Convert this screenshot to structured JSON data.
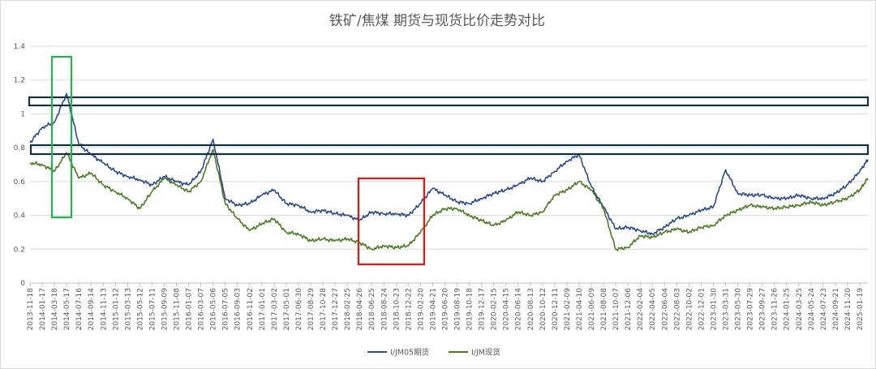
{
  "chart_data": {
    "type": "line",
    "title": "铁矿/焦煤 期货与现货比价走势对比",
    "xlabel": "",
    "ylabel": "",
    "ylim": [
      0,
      1.4
    ],
    "yticks": [
      "0",
      "0.2",
      "0.4",
      "0.6",
      "0.8",
      "1",
      "1.2",
      "1.4"
    ],
    "grid": "horizontal",
    "legend_position": "bottom",
    "colors": {
      "I/JM05期货": "#2e4a87",
      "I/JM现货": "#4f7a28"
    },
    "x_tick_labels": [
      "2013-11-18",
      "2014-01-17",
      "2014-03-18",
      "2014-05-17",
      "2014-07-16",
      "2014-09-14",
      "2014-11-13",
      "2015-01-12",
      "2015-03-13",
      "2015-05-12",
      "2015-07-11",
      "2015-09-09",
      "2015-11-08",
      "2016-01-07",
      "2016-03-07",
      "2016-05-06",
      "2016-07-05",
      "2016-09-03",
      "2016-11-02",
      "2017-01-01",
      "2017-03-02",
      "2017-05-01",
      "2017-06-30",
      "2017-08-29",
      "2017-10-28",
      "2017-12-27",
      "2018-02-25",
      "2018-04-26",
      "2018-06-25",
      "2018-08-24",
      "2018-10-23",
      "2018-12-22",
      "2019-02-20",
      "2019-04-21",
      "2019-06-20",
      "2019-08-19",
      "2019-10-18",
      "2019-12-17",
      "2020-02-15",
      "2020-04-15",
      "2020-06-14",
      "2020-08-13",
      "2020-10-12",
      "2020-12-11",
      "2021-02-09",
      "2021-04-10",
      "2021-06-09",
      "2021-08-08",
      "2021-10-07",
      "2021-12-06",
      "2022-02-04",
      "2022-04-05",
      "2022-06-04",
      "2022-08-03",
      "2022-10-02",
      "2022-12-01",
      "2023-01-30",
      "2023-03-31",
      "2023-05-30",
      "2023-07-29",
      "2023-09-27",
      "2023-11-26",
      "2024-01-25",
      "2024-03-25",
      "2024-05-24",
      "2024-07-23",
      "2024-09-21",
      "2024-11-20",
      "2025-01-19"
    ],
    "x": [
      "2013-11-18",
      "2014-01-17",
      "2014-03-18",
      "2014-05-17",
      "2014-07-16",
      "2014-09-14",
      "2014-11-13",
      "2015-01-12",
      "2015-03-13",
      "2015-05-12",
      "2015-07-11",
      "2015-09-09",
      "2015-11-08",
      "2016-01-07",
      "2016-03-07",
      "2016-05-06",
      "2016-07-05",
      "2016-09-03",
      "2016-11-02",
      "2017-01-01",
      "2017-03-02",
      "2017-05-01",
      "2017-06-30",
      "2017-08-29",
      "2017-10-28",
      "2017-12-27",
      "2018-02-25",
      "2018-04-26",
      "2018-06-25",
      "2018-08-24",
      "2018-10-23",
      "2018-12-22",
      "2019-02-20",
      "2019-04-21",
      "2019-06-20",
      "2019-08-19",
      "2019-10-18",
      "2019-12-17",
      "2020-02-15",
      "2020-04-15",
      "2020-06-14",
      "2020-08-13",
      "2020-10-12",
      "2020-12-11",
      "2021-02-09",
      "2021-04-10",
      "2021-06-09",
      "2021-08-08",
      "2021-10-07",
      "2021-12-06",
      "2022-02-04",
      "2022-04-05",
      "2022-06-04",
      "2022-08-03",
      "2022-10-02",
      "2022-12-01",
      "2023-01-30",
      "2023-03-31",
      "2023-05-30",
      "2023-07-29",
      "2023-09-27",
      "2023-11-26",
      "2024-01-25",
      "2024-03-25",
      "2024-05-24",
      "2024-07-23",
      "2024-09-21",
      "2024-11-20",
      "2025-01-19",
      "2025-02-28"
    ],
    "series": [
      {
        "name": "I/JM05期货",
        "values": [
          0.83,
          0.92,
          0.95,
          1.12,
          0.82,
          0.76,
          0.71,
          0.66,
          0.63,
          0.61,
          0.58,
          0.63,
          0.6,
          0.58,
          0.66,
          0.85,
          0.5,
          0.46,
          0.47,
          0.52,
          0.55,
          0.47,
          0.46,
          0.42,
          0.43,
          0.41,
          0.4,
          0.37,
          0.42,
          0.41,
          0.41,
          0.4,
          0.47,
          0.56,
          0.52,
          0.48,
          0.47,
          0.5,
          0.53,
          0.55,
          0.58,
          0.62,
          0.6,
          0.66,
          0.72,
          0.76,
          0.57,
          0.45,
          0.32,
          0.33,
          0.31,
          0.29,
          0.33,
          0.38,
          0.4,
          0.43,
          0.45,
          0.67,
          0.53,
          0.52,
          0.52,
          0.5,
          0.5,
          0.52,
          0.5,
          0.5,
          0.53,
          0.58,
          0.66,
          0.73
        ]
      },
      {
        "name": "I/JM现货",
        "values": [
          0.71,
          0.7,
          0.66,
          0.77,
          0.62,
          0.65,
          0.58,
          0.54,
          0.5,
          0.44,
          0.54,
          0.62,
          0.58,
          0.54,
          0.6,
          0.79,
          0.47,
          0.38,
          0.31,
          0.35,
          0.38,
          0.3,
          0.29,
          0.25,
          0.26,
          0.25,
          0.26,
          0.24,
          0.2,
          0.22,
          0.21,
          0.22,
          0.3,
          0.4,
          0.44,
          0.44,
          0.4,
          0.37,
          0.34,
          0.37,
          0.42,
          0.4,
          0.42,
          0.52,
          0.55,
          0.6,
          0.55,
          0.44,
          0.2,
          0.21,
          0.28,
          0.27,
          0.3,
          0.32,
          0.3,
          0.33,
          0.34,
          0.4,
          0.43,
          0.46,
          0.45,
          0.44,
          0.45,
          0.46,
          0.48,
          0.46,
          0.48,
          0.5,
          0.55,
          0.62
        ]
      }
    ]
  }
}
